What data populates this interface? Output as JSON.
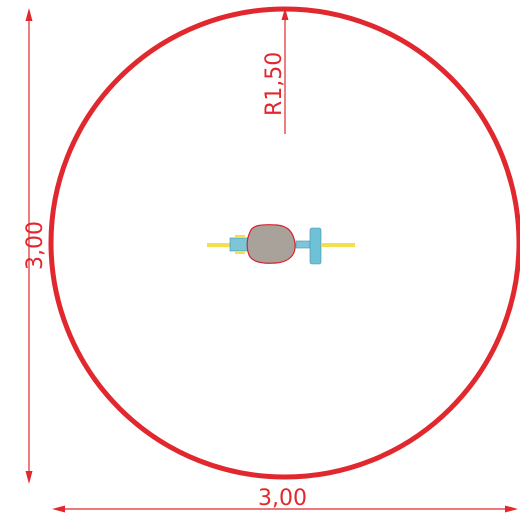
{
  "colors": {
    "dimension": "#e0282e",
    "boundary": "#e0282e",
    "seat_fill": "#a9a29a",
    "seat_outline": "#d8222c",
    "bar": "#f3e04a",
    "spring_blue": "#7cc6d8",
    "handle_blue": "#6ec1d6"
  },
  "dimensions": {
    "radius_label": "R1,50",
    "height_label": "3,00",
    "width_label": "3,00"
  }
}
